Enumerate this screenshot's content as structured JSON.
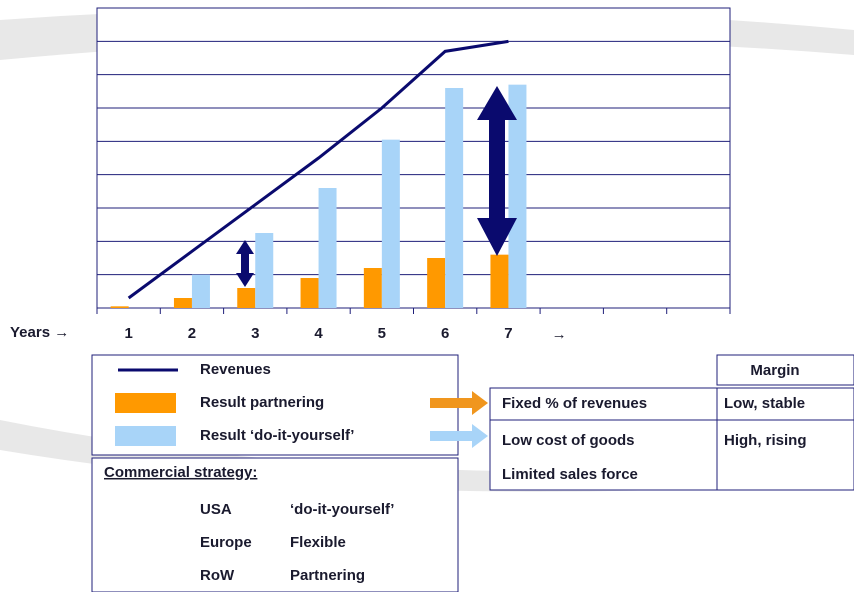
{
  "chart_data": {
    "type": "bar",
    "xlabel": "Years →",
    "x_arrow": "→",
    "categories": [
      "1",
      "2",
      "3",
      "4",
      "5",
      "6",
      "7",
      null,
      null,
      null
    ],
    "ylim": [
      0,
      9
    ],
    "yticks": [
      0,
      1,
      2,
      3,
      4,
      5,
      6,
      7,
      8,
      9
    ],
    "grid": true,
    "series": [
      {
        "name": "Revenues",
        "type": "line",
        "color": "#0a0a6e",
        "values": [
          0.3,
          1.7,
          3.1,
          4.5,
          6.0,
          7.7,
          8.0,
          null,
          null,
          null
        ]
      },
      {
        "name": "Result partnering",
        "type": "bar",
        "color": "#ff9900",
        "values": [
          0.05,
          0.3,
          0.6,
          0.9,
          1.2,
          1.5,
          1.6,
          null,
          null,
          null
        ]
      },
      {
        "name": "Result ‘do-it-yourself’",
        "type": "bar",
        "color": "#a8d4f8",
        "values": [
          0,
          1.0,
          2.25,
          3.6,
          5.05,
          6.6,
          6.7,
          null,
          null,
          null
        ]
      }
    ]
  },
  "strategy": {
    "title": "Commercial strategy:",
    "rows": [
      [
        "USA",
        "‘do-it-yourself’"
      ],
      [
        "Europe",
        "Flexible"
      ],
      [
        "RoW",
        "Partnering"
      ]
    ]
  },
  "table": {
    "header": "Margin",
    "rows": [
      {
        "items": [
          "Fixed % of revenues"
        ],
        "margin": "Low, stable"
      },
      {
        "items": [
          "Low cost of goods",
          "Limited sales force"
        ],
        "margin": "High, rising"
      }
    ]
  }
}
